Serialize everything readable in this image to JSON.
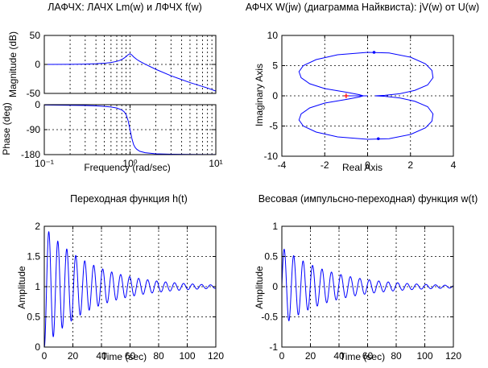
{
  "chart_data": [
    {
      "id": "bode-mag",
      "type": "line",
      "title": "ЛАФЧХ: ЛАЧХ Lm(w) и ЛФЧХ f(w)",
      "xlabel": "",
      "ylabel": "Magnitude (dB)",
      "xscale": "log",
      "xlim": [
        0.1,
        10
      ],
      "ylim": [
        -50,
        50
      ],
      "xticks": [],
      "yticks": [
        50,
        0,
        -50
      ],
      "ytick_labels": [
        "50",
        "0",
        "-50"
      ],
      "grid": true,
      "series": [
        {
          "x": [
            0.1,
            0.2,
            0.3,
            0.4,
            0.5,
            0.6,
            0.7,
            0.75,
            0.8,
            0.85,
            0.9,
            0.95,
            1.0,
            1.05,
            1.1,
            1.2,
            1.3,
            1.5,
            2,
            3,
            4,
            5,
            6,
            8,
            10
          ],
          "y": [
            0,
            0.2,
            0.6,
            1.2,
            2,
            3.3,
            5.3,
            6.7,
            8.5,
            10.8,
            13.6,
            16.7,
            18.5,
            16.2,
            13.0,
            8.5,
            5.3,
            0.4,
            -8.5,
            -19.5,
            -26.2,
            -31.3,
            -35,
            -40.7,
            -46
          ]
        }
      ]
    },
    {
      "id": "bode-phase",
      "type": "line",
      "title": "",
      "xlabel": "Frequency (rad/sec)",
      "ylabel": "Phase (deg)",
      "xscale": "log",
      "xlim": [
        0.1,
        10
      ],
      "ylim": [
        -180,
        0
      ],
      "xticks": [
        0.1,
        1,
        10
      ],
      "xtick_labels": [
        "10⁻¹",
        "10⁰",
        "10¹"
      ],
      "yticks": [
        0,
        -90,
        -180
      ],
      "ytick_labels": [
        "0",
        "-90",
        "-180"
      ],
      "grid": true,
      "series": [
        {
          "x": [
            0.1,
            0.2,
            0.3,
            0.4,
            0.5,
            0.6,
            0.7,
            0.8,
            0.85,
            0.9,
            0.95,
            1.0,
            1.05,
            1.1,
            1.15,
            1.2,
            1.3,
            1.5,
            2,
            3,
            5,
            10
          ],
          "y": [
            -1,
            -2,
            -3,
            -4.5,
            -6,
            -8.5,
            -12,
            -19,
            -25,
            -36,
            -58,
            -90,
            -122,
            -144,
            -155,
            -161,
            -168,
            -173,
            -177,
            -178.5,
            -179.3,
            -179.7
          ]
        }
      ]
    },
    {
      "id": "nyquist",
      "type": "line",
      "title": "АФЧХ W(jw) (диаграмма Найквиста): jV(w) от U(w)",
      "xlabel": "Real Axis",
      "ylabel": "Imaginary Axis",
      "xlim": [
        -4,
        4
      ],
      "ylim": [
        -10,
        10
      ],
      "xticks": [
        -4,
        -2,
        0,
        2,
        4
      ],
      "xtick_labels": [
        "-4",
        "-2",
        "0",
        "2",
        "4"
      ],
      "yticks": [
        10,
        5,
        0,
        -5,
        -10
      ],
      "ytick_labels": [
        "10",
        "5",
        "0",
        "-5",
        "-10"
      ],
      "grid": true,
      "markers": [
        {
          "x": -1,
          "y": 0,
          "symbol": "+",
          "color": "#ff0000"
        },
        {
          "x": 0.3,
          "y": 7.2,
          "symbol": "arrow",
          "color": "#0000ff"
        },
        {
          "x": 0.5,
          "y": -7.1,
          "symbol": "arrow",
          "color": "#0000ff"
        }
      ],
      "series": [
        {
          "x": [
            -0.2,
            -0.4,
            -1.0,
            -2.0,
            -2.7,
            -3.1,
            -3.2,
            -3.0,
            -2.4,
            -1.4,
            0.0,
            1.0,
            2.0,
            2.7,
            3.0,
            3.05,
            2.8,
            2.2,
            1.5,
            0.8,
            0.35
          ],
          "y": [
            0,
            0.2,
            0.6,
            1.2,
            2.0,
            3.0,
            4.0,
            5.0,
            6.0,
            6.8,
            7.2,
            7.1,
            6.4,
            5.3,
            4.2,
            3.0,
            1.8,
            0.9,
            0.35,
            0.08,
            0
          ]
        },
        {
          "x": [
            -0.2,
            -0.4,
            -1.0,
            -2.0,
            -2.7,
            -3.1,
            -3.2,
            -3.0,
            -2.4,
            -1.4,
            0.0,
            1.0,
            2.0,
            2.7,
            3.0,
            3.05,
            2.8,
            2.2,
            1.5,
            0.8,
            0.35
          ],
          "y": [
            0,
            -0.2,
            -0.6,
            -1.2,
            -2.0,
            -3.0,
            -4.0,
            -5.0,
            -6.0,
            -6.8,
            -7.2,
            -7.1,
            -6.4,
            -5.3,
            -4.2,
            -3.0,
            -1.8,
            -0.9,
            -0.35,
            -0.08,
            0
          ]
        },
        {
          "x": [
            -1.1,
            0.0
          ],
          "y": [
            0,
            0
          ]
        }
      ]
    },
    {
      "id": "step",
      "type": "line",
      "title": "Переходная функция h(t)",
      "xlabel": "Time (sec)",
      "ylabel": "Amplitude",
      "xlim": [
        0,
        120
      ],
      "ylim": [
        0,
        2
      ],
      "xticks": [
        0,
        20,
        40,
        60,
        80,
        100,
        120
      ],
      "xtick_labels": [
        "0",
        "20",
        "40",
        "60",
        "80",
        "100",
        "120"
      ],
      "yticks": [
        2,
        1.5,
        1,
        0.5,
        0
      ],
      "ytick_labels": [
        "2",
        "1.5",
        "1",
        "0.5",
        "0"
      ],
      "grid": true,
      "series": [
        {
          "func": "step",
          "zeta": 0.03,
          "wn": 1.0,
          "tmax": 120
        }
      ]
    },
    {
      "id": "impulse",
      "type": "line",
      "title": "Весовая (импульсно-переходная) функция w(t)",
      "xlabel": "Time (sec)",
      "ylabel": "Amplitude",
      "xlim": [
        0,
        120
      ],
      "ylim": [
        -1,
        1
      ],
      "xticks": [
        0,
        20,
        40,
        60,
        80,
        100,
        120
      ],
      "xtick_labels": [
        "0",
        "20",
        "40",
        "60",
        "80",
        "100",
        "120"
      ],
      "yticks": [
        1,
        0.5,
        0,
        -0.5,
        -1
      ],
      "ytick_labels": [
        "1",
        "0.5",
        "0",
        "-0.5",
        "-1"
      ],
      "grid": true,
      "series": [
        {
          "func": "impulse",
          "zeta": 0.03,
          "wn": 0.95,
          "amp": 0.65,
          "tmax": 120
        }
      ]
    }
  ],
  "colors": {
    "line": "#0000ff",
    "axis": "#000000",
    "grid": "#000000",
    "marker": "#ff0000"
  }
}
